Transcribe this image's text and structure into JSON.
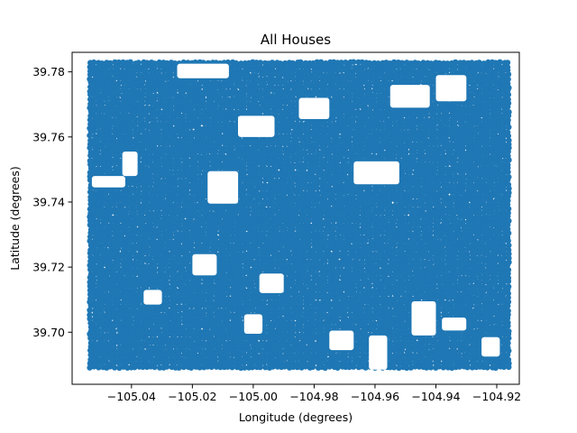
{
  "chart_data": {
    "type": "scatter",
    "title": "All Houses",
    "xlabel": "Longitude (degrees)",
    "ylabel": "Latitude (degrees)",
    "xlim": [
      -105.0595,
      -104.9126
    ],
    "ylim": [
      39.684,
      39.786
    ],
    "xticks": [
      -105.04,
      -105.02,
      -105.0,
      -104.98,
      -104.96,
      -104.94,
      -104.92
    ],
    "xtick_labels": [
      "−105.04",
      "−105.02",
      "−105.00",
      "−104.98",
      "−104.96",
      "−104.94",
      "−104.92"
    ],
    "yticks": [
      39.7,
      39.72,
      39.74,
      39.76,
      39.78
    ],
    "ytick_labels": [
      "39.70",
      "39.72",
      "39.74",
      "39.76",
      "39.78"
    ],
    "grid": false,
    "marker_color": "#1f77b4",
    "extent": {
      "x": [
        -105.0535,
        -104.916
      ],
      "y": [
        39.6885,
        39.7828
      ]
    },
    "series": [
      {
        "name": "",
        "points_summary": "dense cloud of house locations covering the full extent",
        "gaps": [
          {
            "x": [
              -105.025,
              -105.008
            ],
            "y": [
              39.778,
              39.7825
            ]
          },
          {
            "x": [
              -105.043,
              -105.038
            ],
            "y": [
              39.748,
              39.7555
            ]
          },
          {
            "x": [
              -105.053,
              -105.042
            ],
            "y": [
              39.7445,
              39.748
            ]
          },
          {
            "x": [
              -104.967,
              -104.952
            ],
            "y": [
              39.7455,
              39.7525
            ]
          },
          {
            "x": [
              -105.015,
              -105.005
            ],
            "y": [
              39.7395,
              39.7495
            ]
          },
          {
            "x": [
              -105.005,
              -104.993
            ],
            "y": [
              39.76,
              39.7665
            ]
          },
          {
            "x": [
              -104.985,
              -104.975
            ],
            "y": [
              39.7655,
              39.772
            ]
          },
          {
            "x": [
              -104.955,
              -104.942
            ],
            "y": [
              39.769,
              39.776
            ]
          },
          {
            "x": [
              -104.94,
              -104.93
            ],
            "y": [
              39.771,
              39.779
            ]
          },
          {
            "x": [
              -105.036,
              -105.03
            ],
            "y": [
              39.7085,
              39.713
            ]
          },
          {
            "x": [
              -105.02,
              -105.012
            ],
            "y": [
              39.7175,
              39.724
            ]
          },
          {
            "x": [
              -104.998,
              -104.99
            ],
            "y": [
              39.712,
              39.718
            ]
          },
          {
            "x": [
              -104.948,
              -104.94
            ],
            "y": [
              39.699,
              39.7095
            ]
          },
          {
            "x": [
              -104.962,
              -104.956
            ],
            "y": [
              39.6885,
              39.699
            ]
          },
          {
            "x": [
              -104.975,
              -104.967
            ],
            "y": [
              39.6945,
              39.7005
            ]
          },
          {
            "x": [
              -104.938,
              -104.93
            ],
            "y": [
              39.7005,
              39.7045
            ]
          },
          {
            "x": [
              -104.925,
              -104.919
            ],
            "y": [
              39.6925,
              39.6985
            ]
          },
          {
            "x": [
              -105.003,
              -104.997
            ],
            "y": [
              39.6995,
              39.7055
            ]
          }
        ]
      }
    ]
  }
}
